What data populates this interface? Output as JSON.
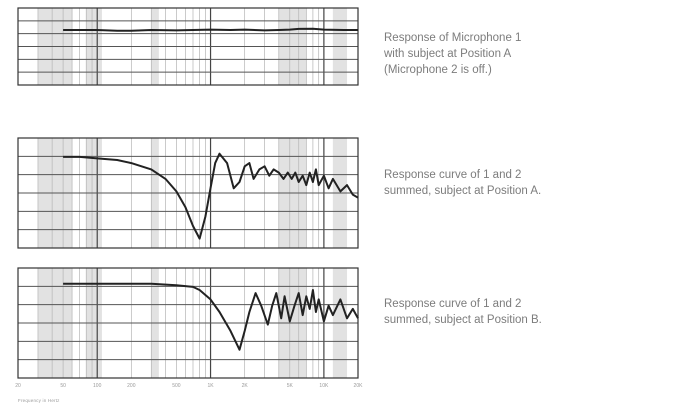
{
  "chart_data": [
    {
      "type": "line",
      "caption": "Response of Microphone 1\nwith subject at Position A\n(Microphone 2 is off.)",
      "xscale": "log",
      "xlim": [
        20,
        20000
      ],
      "grid": true,
      "series": [
        {
          "x": [
            50,
            70,
            100,
            150,
            200,
            300,
            500,
            700,
            1000,
            1500,
            2000,
            3000,
            4000,
            5000,
            6000,
            8000,
            10000,
            15000,
            20000
          ],
          "y": [
            0,
            0,
            0,
            -0.3,
            -0.3,
            0,
            -0.2,
            0,
            0.2,
            0,
            0.2,
            -0.2,
            0,
            0.2,
            0.5,
            0.6,
            0.2,
            0,
            0
          ]
        }
      ]
    },
    {
      "type": "line",
      "caption": "Response curve of 1 and 2\nsummed, subject at Position A.",
      "xscale": "log",
      "xlim": [
        20,
        20000
      ],
      "grid": true,
      "series": [
        {
          "x": [
            50,
            70,
            100,
            150,
            200,
            300,
            400,
            500,
            600,
            700,
            800,
            900,
            1000,
            1100,
            1200,
            1400,
            1600,
            1800,
            2000,
            2200,
            2400,
            2700,
            3000,
            3300,
            3600,
            4000,
            4400,
            4800,
            5200,
            5600,
            6000,
            6500,
            7000,
            7500,
            8000,
            8500,
            9000,
            10000,
            11000,
            12000,
            14000,
            16000,
            18000,
            20000
          ],
          "y": [
            4,
            4,
            3.5,
            3,
            2,
            0,
            -3,
            -7,
            -12,
            -18,
            -22,
            -15,
            -6,
            2,
            5,
            2,
            -6,
            -4,
            1,
            2,
            -3,
            0,
            1,
            -2,
            0,
            -1,
            -3,
            -1,
            -3,
            -1,
            -4,
            -2,
            -5,
            -1,
            -4,
            0,
            -5,
            -2,
            -6,
            -3,
            -7,
            -5,
            -8,
            -9
          ]
        }
      ]
    },
    {
      "type": "line",
      "caption": "Response curve of 1 and 2\nsummed, subject at Position B.",
      "xscale": "log",
      "xlim": [
        20,
        20000
      ],
      "grid": true,
      "series": [
        {
          "x": [
            50,
            70,
            100,
            150,
            200,
            300,
            500,
            700,
            800,
            1000,
            1200,
            1500,
            1800,
            2000,
            2200,
            2500,
            2800,
            3200,
            3500,
            3800,
            4200,
            4500,
            5000,
            5500,
            6000,
            6500,
            7000,
            7500,
            8000,
            8500,
            9000,
            10000,
            11000,
            12000,
            14000,
            16000,
            18000,
            20000
          ],
          "y": [
            5,
            5,
            5,
            5,
            5,
            5,
            4.5,
            4,
            3,
            0,
            -4,
            -10,
            -16,
            -10,
            -4,
            2,
            -2,
            -8,
            -2,
            2,
            -6,
            1,
            -7,
            -2,
            2,
            -5,
            1,
            -3,
            3,
            -4,
            0,
            -7,
            -2,
            -5,
            0,
            -6,
            -3,
            -6
          ]
        }
      ]
    }
  ],
  "axis": {
    "tick_labels": [
      "20",
      "50",
      "100",
      "200",
      "500",
      "1K",
      "2K",
      "5K",
      "10K",
      "20K"
    ],
    "title": "Frequency in Hertz"
  }
}
